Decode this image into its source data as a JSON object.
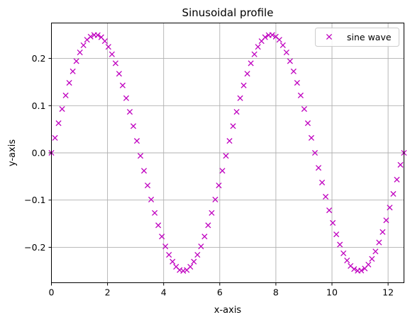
{
  "chart_data": {
    "type": "scatter",
    "title": "Sinusoidal profile",
    "xlabel": "x-axis",
    "ylabel": "y-axis",
    "xlim": [
      0,
      12.566
    ],
    "ylim": [
      -0.275,
      0.275
    ],
    "x_ticks": [
      0,
      2,
      4,
      6,
      8,
      10,
      12
    ],
    "x_tick_labels": [
      "0",
      "2",
      "4",
      "6",
      "8",
      "10",
      "12"
    ],
    "y_ticks": [
      -0.2,
      -0.1,
      0.0,
      0.1,
      0.2
    ],
    "y_tick_labels": [
      "−0.2",
      "−0.1",
      "0.0",
      "0.1",
      "0.2"
    ],
    "grid": true,
    "legend_placement": "top-right",
    "marker": "x",
    "color": "#bf00bf",
    "series": [
      {
        "name": "sine wave",
        "x": [
          0,
          0.127,
          0.254,
          0.381,
          0.508,
          0.635,
          0.762,
          0.889,
          1.016,
          1.142,
          1.269,
          1.396,
          1.523,
          1.65,
          1.777,
          1.904,
          2.031,
          2.158,
          2.285,
          2.412,
          2.539,
          2.666,
          2.793,
          2.92,
          3.046,
          3.173,
          3.3,
          3.427,
          3.554,
          3.681,
          3.808,
          3.935,
          4.062,
          4.189,
          4.316,
          4.443,
          4.57,
          4.697,
          4.824,
          4.95,
          5.077,
          5.204,
          5.331,
          5.458,
          5.585,
          5.712,
          5.839,
          5.966,
          6.093,
          6.22,
          6.347,
          6.474,
          6.601,
          6.728,
          6.854,
          6.981,
          7.108,
          7.235,
          7.362,
          7.489,
          7.616,
          7.743,
          7.87,
          7.997,
          8.124,
          8.251,
          8.378,
          8.505,
          8.632,
          8.758,
          8.885,
          9.012,
          9.139,
          9.266,
          9.393,
          9.52,
          9.647,
          9.774,
          9.901,
          10.028,
          10.155,
          10.282,
          10.409,
          10.536,
          10.662,
          10.789,
          10.916,
          11.043,
          11.17,
          11.297,
          11.424,
          11.551,
          11.678,
          11.805,
          11.932,
          12.059,
          12.186,
          12.313,
          12.44,
          12.566
        ],
        "y": [
          0,
          0.0317,
          0.0628,
          0.0929,
          0.1216,
          0.1483,
          0.1726,
          0.1942,
          0.2127,
          0.2279,
          0.2395,
          0.2461,
          0.2497,
          0.2493,
          0.2449,
          0.2366,
          0.2245,
          0.2088,
          0.1897,
          0.1676,
          0.1428,
          0.1158,
          0.0869,
          0.0566,
          0.0253,
          -0.0063,
          -0.0379,
          -0.069,
          -0.0989,
          -0.1272,
          -0.1534,
          -0.1772,
          -0.1981,
          -0.2159,
          -0.2304,
          -0.2412,
          -0.2482,
          -0.25,
          -0.2482,
          -0.2412,
          -0.2304,
          -0.2159,
          -0.1981,
          -0.1772,
          -0.1534,
          -0.1272,
          -0.0989,
          -0.069,
          -0.0379,
          -0.0063,
          0.0253,
          0.0566,
          0.0869,
          0.1158,
          0.1428,
          0.1676,
          0.1897,
          0.2088,
          0.2245,
          0.2366,
          0.2449,
          0.2493,
          0.2497,
          0.2461,
          0.2395,
          0.2279,
          0.2127,
          0.1942,
          0.1726,
          0.1483,
          0.1216,
          0.0929,
          0.0628,
          0.0317,
          0,
          -0.0317,
          -0.0628,
          -0.0929,
          -0.1216,
          -0.1483,
          -0.1726,
          -0.1942,
          -0.2127,
          -0.2279,
          -0.2395,
          -0.2461,
          -0.2497,
          -0.2493,
          -0.2449,
          -0.2366,
          -0.2245,
          -0.2088,
          -0.1897,
          -0.1676,
          -0.1428,
          -0.1158,
          -0.0869,
          -0.0566,
          -0.0253,
          0
        ]
      }
    ]
  }
}
